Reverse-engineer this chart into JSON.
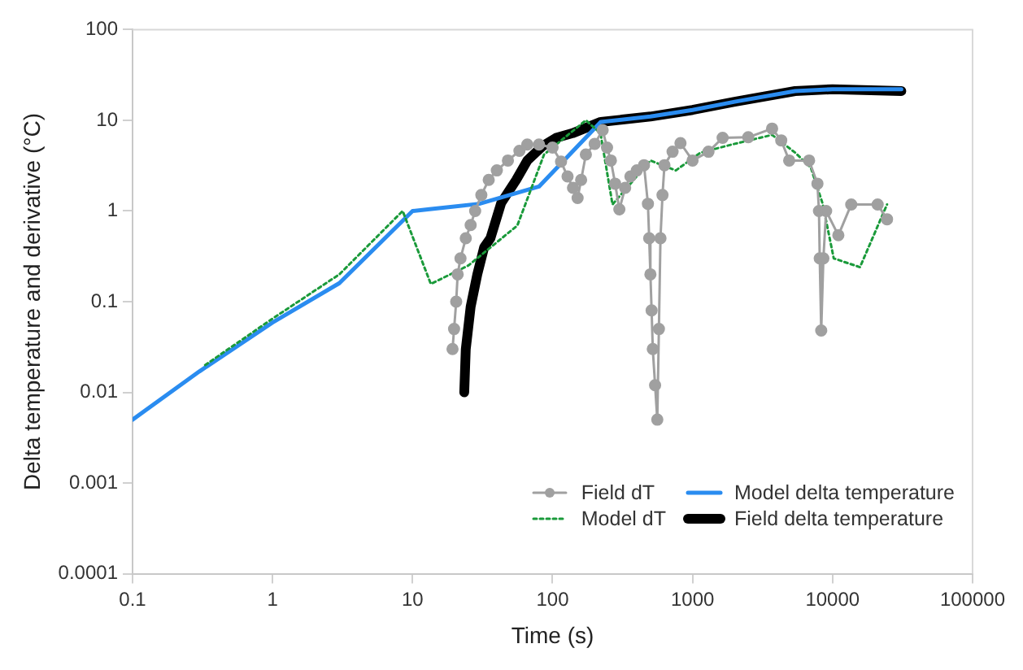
{
  "chart_data": {
    "type": "line",
    "xlabel": "Time (s)",
    "ylabel": "Delta temperature and derivative (°C)",
    "log": "xy",
    "xlim": [
      0.1,
      100000
    ],
    "xticks": [
      0.1,
      1,
      10,
      100,
      1000,
      10000,
      100000
    ],
    "ylim": [
      0.0001,
      100
    ],
    "yticks": [
      0.0001,
      0.001,
      0.01,
      0.1,
      1,
      10,
      100
    ],
    "grid": false,
    "legend": "bottom right",
    "series": [
      {
        "name": "Field dT",
        "color": "#a0a0a0",
        "marker": "circle",
        "line_style": "solid",
        "x": [
          19.3,
          19.8,
          20.5,
          21,
          22,
          24,
          26,
          28,
          31,
          35,
          40,
          48,
          58,
          66,
          80,
          100,
          115,
          128,
          140,
          151,
          160,
          173,
          200,
          228,
          245,
          261,
          280,
          300,
          330,
          360,
          400,
          450,
          480,
          490,
          500,
          510,
          520,
          540,
          560,
          575,
          590,
          610,
          630,
          720,
          820,
          1000,
          1300,
          1640,
          2500,
          3700,
          4300,
          4900,
          6800,
          7800,
          8000,
          8100,
          8300,
          8600,
          9000,
          11000,
          13600,
          21000,
          24500
        ],
        "values": [
          0.03,
          0.05,
          0.1,
          0.2,
          0.3,
          0.5,
          0.7,
          1,
          1.5,
          2.2,
          2.8,
          3.6,
          4.6,
          5.4,
          5.4,
          5,
          3.5,
          2.4,
          1.8,
          1.39,
          2.2,
          4.2,
          5.5,
          7.8,
          5,
          3.6,
          2,
          1.04,
          1.8,
          2.4,
          2.8,
          3.2,
          1.2,
          0.5,
          0.2,
          0.08,
          0.03,
          0.012,
          0.005,
          0.05,
          0.5,
          1.5,
          3.2,
          4.5,
          5.6,
          3.6,
          4.5,
          6.4,
          6.5,
          8.1,
          6,
          3.6,
          3.6,
          2,
          1,
          0.3,
          0.048,
          0.3,
          1,
          0.54,
          1.18,
          1.18,
          0.81
        ]
      },
      {
        "name": "Model dT",
        "color": "#1a9a3a",
        "marker": "none",
        "line_style": "dotted",
        "x": [
          0.33,
          1,
          3,
          8.5,
          13.5,
          25,
          56,
          87,
          173,
          220,
          268,
          500,
          760,
          1140,
          2000,
          3700,
          5400,
          7000,
          8500,
          10200,
          15700,
          24500
        ],
        "values": [
          0.02,
          0.065,
          0.2,
          1,
          0.157,
          0.25,
          0.69,
          4.2,
          10,
          7.2,
          1.18,
          3.6,
          2.8,
          4.4,
          5.5,
          6.9,
          4.4,
          3,
          1.2,
          0.3,
          0.24,
          1.18
        ]
      },
      {
        "name": "Model delta temperature",
        "color": "#2a8cf0",
        "marker": "none",
        "line_style": "solid",
        "x": [
          0.1,
          0.3,
          1,
          3,
          10,
          30,
          80,
          221,
          500,
          1000,
          2000,
          5400,
          10000,
          31000
        ],
        "values": [
          0.005,
          0.017,
          0.059,
          0.16,
          1,
          1.2,
          1.86,
          9.6,
          11,
          13,
          16,
          21,
          22,
          22
        ]
      },
      {
        "name": "Field delta temperature",
        "color": "#000000",
        "marker": "none",
        "line_style": "solid",
        "x": [
          23.4,
          24,
          26,
          29,
          32.5,
          36,
          43,
          55,
          66,
          85,
          106,
          139,
          221,
          500,
          1000,
          2000,
          5400,
          10000,
          31000
        ],
        "values": [
          0.01,
          0.03,
          0.088,
          0.2,
          0.4,
          0.5,
          1.23,
          2.2,
          3.6,
          5.2,
          6.4,
          7.2,
          9.6,
          11,
          13,
          16,
          21,
          22,
          21
        ]
      }
    ]
  }
}
